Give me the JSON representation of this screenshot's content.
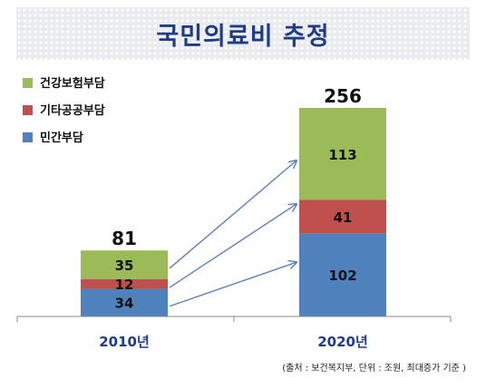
{
  "chart_data": {
    "type": "stacked-bar",
    "title": "국민의료비 추정",
    "categories": [
      "2010년",
      "2020년"
    ],
    "series": [
      {
        "name": "민간부담",
        "color": "#4f81bd",
        "values": [
          34,
          102
        ]
      },
      {
        "name": "기타공공부담",
        "color": "#c0504d",
        "values": [
          12,
          41
        ]
      },
      {
        "name": "건강보험부담",
        "color": "#9bbb59",
        "values": [
          35,
          113
        ]
      }
    ],
    "totals": [
      81,
      256
    ],
    "ylim": [
      0,
      256
    ],
    "grid": false,
    "legend_position": "top-left",
    "source_note": "(출처 : 보건복지부, 단위 : 조원, 최대증가 기준 )"
  }
}
